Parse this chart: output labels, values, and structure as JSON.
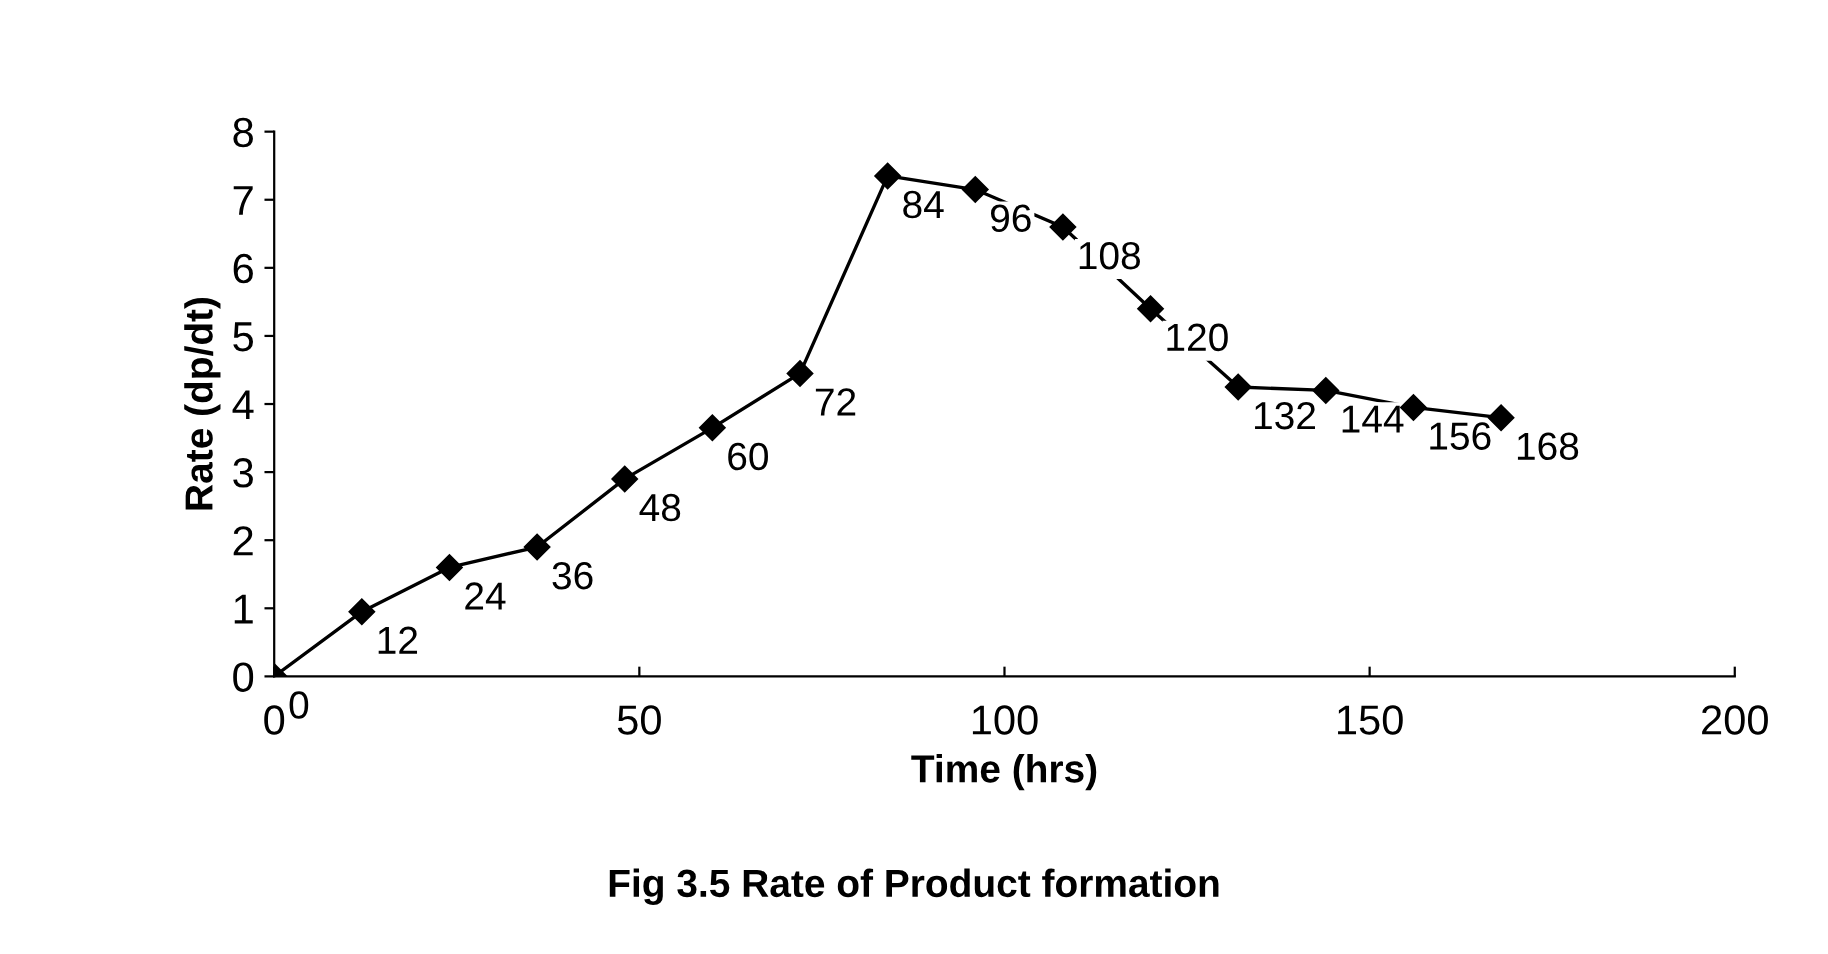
{
  "chart_data": {
    "type": "line",
    "title": "Fig 3.5 Rate of Product formation",
    "xlabel": "Time (hrs)",
    "ylabel": "Rate (dp/dt)",
    "x": [
      0,
      12,
      24,
      36,
      48,
      60,
      72,
      84,
      96,
      108,
      120,
      132,
      144,
      156,
      168
    ],
    "series": [
      {
        "color": "#000000",
        "values": [
          0,
          0.95,
          1.6,
          1.9,
          2.9,
          3.65,
          4.45,
          7.35,
          7.15,
          6.6,
          5.4,
          4.25,
          4.2,
          3.95,
          3.8
        ]
      }
    ],
    "annotations": [
      {
        "text": "0",
        "x": 0,
        "y": 0
      },
      {
        "text": "12",
        "x": 12,
        "y": 0.95
      },
      {
        "text": "24",
        "x": 24,
        "y": 1.6
      },
      {
        "text": "36",
        "x": 36,
        "y": 1.9
      },
      {
        "text": "48",
        "x": 48,
        "y": 2.9
      },
      {
        "text": "60",
        "x": 60,
        "y": 3.65
      },
      {
        "text": "72",
        "x": 72,
        "y": 4.45
      },
      {
        "text": "84",
        "x": 84,
        "y": 7.35
      },
      {
        "text": "96",
        "x": 96,
        "y": 7.15
      },
      {
        "text": "108",
        "x": 108,
        "y": 6.6
      },
      {
        "text": "120",
        "x": 120,
        "y": 5.4
      },
      {
        "text": "132",
        "x": 132,
        "y": 4.25
      },
      {
        "text": "144",
        "x": 144,
        "y": 4.2
      },
      {
        "text": "156",
        "x": 156,
        "y": 3.95
      },
      {
        "text": "168",
        "x": 168,
        "y": 3.8
      }
    ],
    "xlim": [
      0,
      200
    ],
    "xticks": [
      0,
      50,
      100,
      150,
      200
    ],
    "ylim": [
      0,
      8
    ],
    "yticks": [
      0,
      1,
      2,
      3,
      4,
      5,
      6,
      7,
      8
    ],
    "marker": "diamond",
    "line_style": "solid",
    "grid": false
  }
}
